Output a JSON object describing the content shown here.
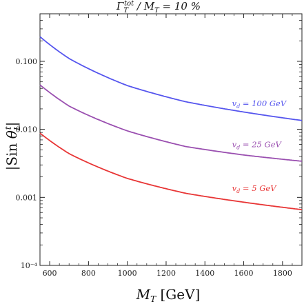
{
  "chart_data": {
    "type": "line",
    "title": "Γ_T^tot / M_T = 10 %",
    "xlabel": "M_T  [GeV]",
    "ylabel": "|Sin θ_L^t|",
    "xlim": [
      550,
      1900
    ],
    "ylim": [
      0.0001,
      0.5
    ],
    "yscale": "log",
    "x_ticks": [
      600,
      800,
      1000,
      1200,
      1400,
      1600,
      1800
    ],
    "y_ticks": [
      {
        "value": 0.0001,
        "label": "10⁻⁴"
      },
      {
        "value": 0.001,
        "label": "0.001"
      },
      {
        "value": 0.01,
        "label": "0.010"
      },
      {
        "value": 0.1,
        "label": "0.100"
      }
    ],
    "grid": false,
    "series": [
      {
        "name": "v_d = 100 GeV",
        "color": "#5555ee",
        "x": [
          550,
          700,
          1000,
          1300,
          1600,
          1900
        ],
        "y": [
          0.23,
          0.11,
          0.044,
          0.0255,
          0.018,
          0.0135
        ]
      },
      {
        "name": "v_d = 25 GeV",
        "color": "#9a4fb0",
        "x": [
          550,
          700,
          1000,
          1300,
          1600,
          1900
        ],
        "y": [
          0.045,
          0.022,
          0.0095,
          0.0056,
          0.0042,
          0.0034
        ]
      },
      {
        "name": "v_d = 5 GeV",
        "color": "#e83535",
        "x": [
          550,
          700,
          1000,
          1300,
          1600,
          1900
        ],
        "y": [
          0.0088,
          0.0044,
          0.0019,
          0.00115,
          0.00085,
          0.00066
        ]
      }
    ],
    "annotations": [
      {
        "text": "v_d = 100 GeV",
        "x": 1540,
        "y": 0.022
      },
      {
        "text": "v_d = 25 GeV",
        "x": 1540,
        "y": 0.0055
      },
      {
        "text": "v_d = 5 GeV",
        "x": 1540,
        "y": 0.00125
      }
    ]
  }
}
